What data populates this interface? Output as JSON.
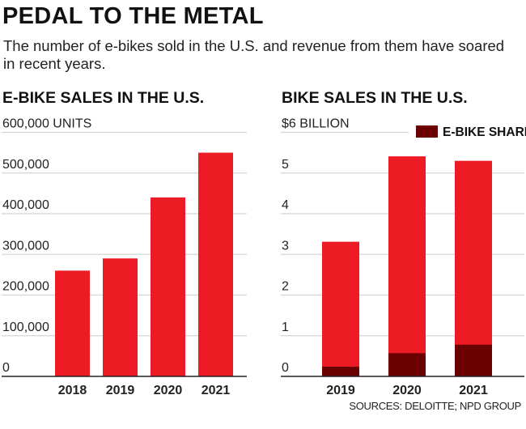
{
  "title": "PEDAL TO THE METAL",
  "subtitle": "The number of e-bikes sold in the U.S. and revenue from them have soared in recent years.",
  "source": "SOURCES: DELOITTE; NPD GROUP",
  "colors": {
    "bar": "#ed1c24",
    "ebike_share": "#6b0000",
    "grid": "#d4d4d4",
    "axis": "#222222"
  },
  "chart_data": [
    {
      "type": "bar",
      "title": "E-BIKE SALES IN THE U.S.",
      "ylabel": "UNITS",
      "categories": [
        "2018",
        "2019",
        "2020",
        "2021"
      ],
      "values": [
        260000,
        290000,
        440000,
        550000
      ],
      "ylim": [
        0,
        600000
      ],
      "yticks": [
        0,
        100000,
        200000,
        300000,
        400000,
        500000,
        600000
      ],
      "ytick_labels": [
        "0",
        "100,000",
        "200,000",
        "300,000",
        "400,000",
        "500,000",
        "600,000 UNITS"
      ],
      "grid": true
    },
    {
      "type": "bar",
      "stacked": true,
      "title": "BIKE SALES IN THE U.S.",
      "ylabel": "$ BILLION",
      "categories": [
        "2019",
        "2020",
        "2021"
      ],
      "series": [
        {
          "values": [
            3.31,
            5.41,
            5.3
          ]
        },
        {
          "name": "E-BIKE SHARE",
          "values": [
            0.24,
            0.57,
            0.78
          ]
        }
      ],
      "ylim": [
        0,
        6
      ],
      "yticks": [
        0,
        1,
        2,
        3,
        4,
        5,
        6
      ],
      "ytick_labels": [
        "0",
        "1",
        "2",
        "3",
        "4",
        "5",
        "$6 BILLION"
      ],
      "legend": "top-right",
      "grid": true
    }
  ]
}
